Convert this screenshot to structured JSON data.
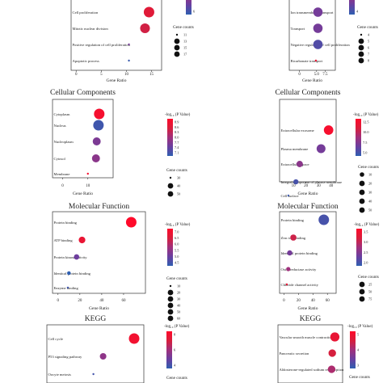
{
  "colorbar": {
    "label": "-log₁₀ (P Value)",
    "stops": [
      "#2f5fb0",
      "#6a3fa0",
      "#a0307c",
      "#d81e3c",
      "#ff0a2a"
    ]
  },
  "chart_data": [
    {
      "id": "p0",
      "type": "scatter",
      "title": "",
      "xlabel": "Gene Ratio",
      "xticks": [
        0,
        5,
        10,
        15
      ],
      "xtick_labels": [
        "0",
        "5",
        "10",
        "15"
      ],
      "xlim": [
        -1,
        17
      ],
      "categories": [
        "Cell proliferation",
        "Mitotic nuclear division",
        "Positive regulation of cell proliferation",
        "Apoptotic process"
      ],
      "points": [
        {
          "x": 14.5,
          "size": 17,
          "p": 6.0
        },
        {
          "x": 13.7,
          "size": 16,
          "p": 5.6
        },
        {
          "x": 10.5,
          "size": 11,
          "p": 3.5
        },
        {
          "x": 10.5,
          "size": 11,
          "p": 2.2
        }
      ],
      "colorbar_ticks": [
        "6"
      ],
      "colorbar_range": [
        2,
        7
      ],
      "size_title": "Gene counts",
      "size_labels": [
        "11",
        "13",
        "15",
        "17"
      ],
      "size_legend_values": [
        11,
        13,
        15,
        17
      ],
      "size_range": [
        11,
        17
      ]
    },
    {
      "id": "p1",
      "type": "scatter",
      "title": "",
      "xlabel": "Gene Ratio",
      "xticks": [
        0,
        5,
        7.5
      ],
      "xtick_labels": [
        "0",
        "5.0",
        "7.5"
      ],
      "xlim": [
        -3,
        10.5
      ],
      "categories": [
        "Ion transmembrane transport",
        "Transport",
        "Negative regulation of cell proliferation",
        "Bicarbonate transport"
      ],
      "points": [
        {
          "x": 5.4,
          "size": 7,
          "p": 3.2
        },
        {
          "x": 5.4,
          "size": 7,
          "p": 3.2
        },
        {
          "x": 5.4,
          "size": 7,
          "p": 2.6
        },
        {
          "x": 4.8,
          "size": 4,
          "p": 5.6
        }
      ],
      "colorbar_ticks": [
        "4"
      ],
      "colorbar_range": [
        2,
        6
      ],
      "size_title": "Gene counts",
      "size_labels": [
        "4",
        "5",
        "6",
        "7",
        "8"
      ],
      "size_legend_values": [
        4,
        5,
        6,
        7,
        8
      ],
      "size_range": [
        4,
        8
      ]
    },
    {
      "id": "p2",
      "type": "scatter",
      "title": "Cellular Components",
      "xlabel": "Gene Ratio",
      "xticks": [
        0,
        10
      ],
      "xtick_labels": [
        "0",
        "10"
      ],
      "xlim": [
        -4,
        20
      ],
      "categories": [
        "Cytoplasm",
        "Nucleus",
        "Nucleoplasm",
        "Cytosol",
        "Membrane"
      ],
      "points": [
        {
          "x": 14.5,
          "size": 50,
          "p": 8.8
        },
        {
          "x": 14.2,
          "size": 50,
          "p": 6.2
        },
        {
          "x": 13.5,
          "size": 40,
          "p": 7.0
        },
        {
          "x": 13.2,
          "size": 40,
          "p": 7.2
        },
        {
          "x": 10.0,
          "size": 30,
          "p": 8.8
        }
      ],
      "colorbar_ticks": [
        "8.9",
        "8.6",
        "8.3",
        "8.0",
        "7.7",
        "7.4",
        "7.1"
      ],
      "colorbar_range": [
        6.0,
        9.0
      ],
      "size_title": "Gene counts",
      "size_labels": [
        "30",
        "40",
        "50"
      ],
      "size_legend_values": [
        30,
        40,
        50
      ],
      "size_range": [
        30,
        50
      ]
    },
    {
      "id": "p3",
      "type": "scatter",
      "title": "Cellular Components",
      "xlabel": "Gene Ratio",
      "xticks": [
        10,
        20,
        30,
        40
      ],
      "xtick_labels": [
        "10",
        "20",
        "30",
        "40"
      ],
      "xlim": [
        -1,
        44
      ],
      "categories": [
        "Extracellular exosome",
        "Plasma membrane",
        "Extracellular space",
        "Integral component of plasma membrane",
        "Cell surface"
      ],
      "points": [
        {
          "x": 38,
          "size": 40,
          "p": 12.5
        },
        {
          "x": 32,
          "size": 35,
          "p": 6.0
        },
        {
          "x": 15,
          "size": 18,
          "p": 7.0
        },
        {
          "x": 12,
          "size": 12,
          "p": 4.0
        },
        {
          "x": 6,
          "size": 6,
          "p": 3.5
        }
      ],
      "colorbar_ticks": [
        "12.5",
        "10.0",
        "7.5",
        "5.0"
      ],
      "colorbar_range": [
        3,
        13
      ],
      "size_title": "Gene counts",
      "size_labels": [
        "10",
        "20",
        "30",
        "40",
        "50"
      ],
      "size_legend_values": [
        10,
        20,
        30,
        40,
        50
      ],
      "size_range": [
        6,
        50
      ]
    },
    {
      "id": "p4",
      "type": "scatter",
      "title": "Molecular Function",
      "xlabel": "Gene Ratio",
      "xticks": [
        0,
        20,
        40,
        60
      ],
      "xtick_labels": [
        "0",
        "20",
        "40",
        "60"
      ],
      "xlim": [
        -5,
        80
      ],
      "categories": [
        "Protein binding",
        "ATP binding",
        "Protein kinase activity",
        "Identical protein binding",
        "Enzyme binding"
      ],
      "points": [
        {
          "x": 67,
          "size": 60,
          "p": 7.0
        },
        {
          "x": 22,
          "size": 25,
          "p": 6.6
        },
        {
          "x": 17,
          "size": 18,
          "p": 4.8
        },
        {
          "x": 10,
          "size": 12,
          "p": 4.0
        },
        {
          "x": 9,
          "size": 10,
          "p": 4.2
        }
      ],
      "colorbar_ticks": [
        "7.0",
        "6.5",
        "6.0",
        "5.5",
        "5.0",
        "4.5"
      ],
      "colorbar_range": [
        4.0,
        7.0
      ],
      "size_title": "Gene counts",
      "size_labels": [
        "10",
        "20",
        "30",
        "40",
        "50",
        "60"
      ],
      "size_legend_values": [
        10,
        20,
        30,
        40,
        50,
        60
      ],
      "size_range": [
        10,
        60
      ]
    },
    {
      "id": "p5",
      "type": "scatter",
      "title": "Molecular Function",
      "xlabel": "Gene Ratio",
      "xticks": [
        0,
        20,
        40,
        60
      ],
      "xtick_labels": [
        "0",
        "20",
        "40",
        "60"
      ],
      "xlim": [
        -6,
        72
      ],
      "categories": [
        "Protein binding",
        "Zinc ion binding",
        "Identical protein binding",
        "Oxidoreductase activity",
        "Chloride channel activity"
      ],
      "points": [
        {
          "x": 55,
          "size": 75,
          "p": 2.0
        },
        {
          "x": 13,
          "size": 22,
          "p": 3.2
        },
        {
          "x": 8,
          "size": 15,
          "p": 2.4
        },
        {
          "x": 6,
          "size": 10,
          "p": 2.8
        },
        {
          "x": 4,
          "size": 5,
          "p": 3.5
        }
      ],
      "colorbar_ticks": [
        "3.5",
        "3.0",
        "2.5",
        "2.0"
      ],
      "colorbar_range": [
        1.8,
        3.8
      ],
      "size_title": "Gene counts",
      "size_labels": [
        "25",
        "50",
        "75"
      ],
      "size_legend_values": [
        25,
        50,
        75
      ],
      "size_range": [
        5,
        75
      ]
    },
    {
      "id": "p6",
      "type": "scatter",
      "title": "KEGG",
      "xlabel": "",
      "xticks": [],
      "xtick_labels": [],
      "xlim": [
        0,
        10
      ],
      "categories": [
        "Cell cycle",
        "P53 signaling pathway",
        "Oocyte meiosis"
      ],
      "points": [
        {
          "x": 9.0,
          "size": 12,
          "p": 8.0
        },
        {
          "x": 5.8,
          "size": 7,
          "p": 5.0
        },
        {
          "x": 4.8,
          "size": 5,
          "p": 3.0
        }
      ],
      "colorbar_ticks": [
        "8",
        "6",
        "4"
      ],
      "colorbar_range": [
        2.5,
        8.5
      ],
      "size_title": "Gene counts",
      "size_labels": [],
      "size_legend_values": [],
      "size_range": [
        5,
        12
      ]
    },
    {
      "id": "p7",
      "type": "scatter",
      "title": "KEGG",
      "xlabel": "",
      "xticks": [],
      "xtick_labels": [],
      "xlim": [
        0,
        10
      ],
      "categories": [
        "Vascular smooth muscle contraction",
        "Pancreatic secretion",
        "Aldosterone-regulated sodium reabsorption"
      ],
      "points": [
        {
          "x": 8.8,
          "size": 10,
          "p": 4.8
        },
        {
          "x": 8.4,
          "size": 8,
          "p": 4.5
        },
        {
          "x": 8.3,
          "size": 8,
          "p": 4.0
        }
      ],
      "colorbar_ticks": [
        "5",
        "4",
        "3"
      ],
      "colorbar_range": [
        2.5,
        5.2
      ],
      "size_title": "Gene counts",
      "size_labels": [],
      "size_legend_values": [],
      "size_range": [
        5,
        12
      ]
    }
  ]
}
